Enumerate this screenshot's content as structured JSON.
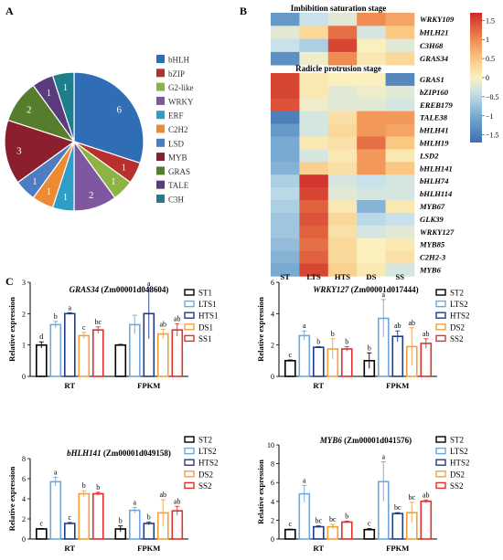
{
  "panels": {
    "a": "A",
    "b": "B",
    "c": "C"
  },
  "panel_a": {
    "type": "pie",
    "legend": [
      "bHLH",
      "bZIP",
      "G2-like",
      "WRKY",
      "ERF",
      "C2H2",
      "LSD",
      "MYB",
      "GRAS",
      "TALE",
      "C3H"
    ],
    "counts": [
      6,
      1,
      1,
      2,
      1,
      1,
      1,
      3,
      2,
      1,
      1
    ],
    "colors": [
      "#2F6EB5",
      "#B8302E",
      "#8CB344",
      "#7E57A0",
      "#2E9EC9",
      "#ED8B35",
      "#4E7CC0",
      "#8B1F2E",
      "#567D2E",
      "#5A3C7E",
      "#1E7E8C"
    ]
  },
  "panel_b": {
    "title1": "Imbibition saturation stage",
    "title2": "Radicle protrusion stage",
    "columns": [
      "ST",
      "LTS",
      "HTS",
      "DS",
      "SS"
    ],
    "genes1": [
      "WRKY109",
      "bHLH21",
      "C3H68",
      "GRAS34"
    ],
    "genes2": [
      "GRAS1",
      "bZIP160",
      "EREB179",
      "TALE38",
      "bHLH41",
      "bHLH19",
      "LSD2",
      "bHLH141",
      "bHLH74",
      "bHLH114",
      "MYB67",
      "GLK39",
      "WRKY127",
      "MYB85",
      "C2H2-3",
      "MYB6"
    ],
    "colorbar_ticks": [
      "1.5",
      "1",
      "0.5",
      "0",
      "−0.5",
      "−1",
      "−1.5"
    ],
    "values1": [
      [
        -1.2,
        -0.4,
        -0.2,
        1.0,
        0.8
      ],
      [
        -0.2,
        0.3,
        1.2,
        -0.3,
        0.5
      ],
      [
        -0.4,
        -0.6,
        1.5,
        0.0,
        -0.2
      ],
      [
        -1.3,
        -0.1,
        1.0,
        0.1,
        0.3
      ]
    ],
    "values2": [
      [
        1.5,
        0.1,
        0.0,
        0.0,
        -1.4
      ],
      [
        1.5,
        0.1,
        -0.2,
        -0.1,
        -0.2
      ],
      [
        1.4,
        -0.1,
        -0.2,
        -0.2,
        -0.3
      ],
      [
        -1.5,
        -0.3,
        0.2,
        0.9,
        0.9
      ],
      [
        -1.2,
        -0.3,
        0.3,
        0.9,
        0.8
      ],
      [
        -1.0,
        0.1,
        0.2,
        1.2,
        0.5
      ],
      [
        -1.0,
        -0.3,
        0.1,
        0.9,
        0.1
      ],
      [
        -0.9,
        0.4,
        0.2,
        0.9,
        0.5
      ],
      [
        -0.6,
        1.6,
        -0.3,
        -0.4,
        -0.3
      ],
      [
        -0.5,
        1.5,
        -0.2,
        -0.3,
        -0.3
      ],
      [
        -0.6,
        1.3,
        0.1,
        -0.9,
        0.1
      ],
      [
        -0.7,
        1.4,
        0.3,
        -0.5,
        -0.4
      ],
      [
        -0.7,
        1.3,
        0.2,
        -0.3,
        -0.2
      ],
      [
        -0.8,
        1.2,
        0.3,
        0.0,
        0.1
      ],
      [
        -0.9,
        1.3,
        0.3,
        0.0,
        0.2
      ],
      [
        -1.0,
        1.5,
        0.4,
        0.1,
        -0.3
      ]
    ]
  },
  "chart_data": [
    {
      "type": "bar",
      "title_gene": "GRAS34",
      "title_id": "(Zm00001d048604)",
      "ylabel": "Relative expression",
      "categories": [
        "RT",
        "FPKM"
      ],
      "ylim": [
        0,
        3
      ],
      "yticks": [
        "0",
        "1",
        "2",
        "3"
      ],
      "series": [
        {
          "name": "ST1",
          "color": "#000000",
          "values": [
            1.0,
            1.0
          ],
          "errors": [
            0.1,
            0.02
          ],
          "letters": [
            "d",
            ""
          ]
        },
        {
          "name": "LTS1",
          "color": "#6FA8DC",
          "values": [
            1.65,
            1.65
          ],
          "errors": [
            0.1,
            0.3
          ],
          "letters": [
            "b",
            ""
          ]
        },
        {
          "name": "HTS1",
          "color": "#1F3C88",
          "values": [
            2.0,
            2.0
          ],
          "errors": [
            0.03,
            0.8
          ],
          "letters": [
            "a",
            "a"
          ]
        },
        {
          "name": "DS1",
          "color": "#F4A13A",
          "values": [
            1.3,
            1.35
          ],
          "errors": [
            0.1,
            0.15
          ],
          "letters": [
            "c",
            "ab"
          ]
        },
        {
          "name": "SS1",
          "color": "#E03030",
          "values": [
            1.48,
            1.48
          ],
          "errors": [
            0.1,
            0.2
          ],
          "letters": [
            "bc",
            "ab"
          ]
        }
      ]
    },
    {
      "type": "bar",
      "title_gene": "WRKY127",
      "title_id": "(Zm00001d017444)",
      "ylabel": "Relative expression",
      "categories": [
        "RT",
        "FPKM"
      ],
      "ylim": [
        0,
        6
      ],
      "yticks": [
        "0",
        "2",
        "4",
        "6"
      ],
      "series": [
        {
          "name": "ST2",
          "color": "#000000",
          "values": [
            1.0,
            1.0
          ],
          "errors": [
            0.05,
            0.5
          ],
          "letters": [
            "c",
            "b"
          ]
        },
        {
          "name": "LTS2",
          "color": "#6FA8DC",
          "values": [
            2.6,
            3.7
          ],
          "errors": [
            0.3,
            1.2
          ],
          "letters": [
            "a",
            "a"
          ]
        },
        {
          "name": "HTS2",
          "color": "#1F3C88",
          "values": [
            1.85,
            2.55
          ],
          "errors": [
            0.05,
            0.35
          ],
          "letters": [
            "b",
            "ab"
          ]
        },
        {
          "name": "DS2",
          "color": "#F4A13A",
          "values": [
            1.75,
            1.9
          ],
          "errors": [
            0.65,
            1.2
          ],
          "letters": [
            "b",
            "ab"
          ]
        },
        {
          "name": "SS2",
          "color": "#E03030",
          "values": [
            1.75,
            2.1
          ],
          "errors": [
            0.15,
            0.3
          ],
          "letters": [
            "b",
            "ab"
          ]
        }
      ]
    },
    {
      "type": "bar",
      "title_gene": "bHLH141",
      "title_id": "(Zm00001d049158)",
      "ylabel": "Relative expression",
      "categories": [
        "RT",
        "FPKM"
      ],
      "ylim": [
        0,
        8
      ],
      "yticks": [
        "0",
        "2",
        "4",
        "6",
        "8"
      ],
      "series": [
        {
          "name": "ST2",
          "color": "#000000",
          "values": [
            1.0,
            1.0
          ],
          "errors": [
            0.05,
            0.3
          ],
          "letters": [
            "c",
            "b"
          ]
        },
        {
          "name": "LTS2",
          "color": "#6FA8DC",
          "values": [
            5.7,
            2.85
          ],
          "errors": [
            0.45,
            0.3
          ],
          "letters": [
            "a",
            "a"
          ]
        },
        {
          "name": "HTS2",
          "color": "#1F3C88",
          "values": [
            1.55,
            1.55
          ],
          "errors": [
            0.1,
            0.15
          ],
          "letters": [
            "c",
            "b"
          ]
        },
        {
          "name": "DS2",
          "color": "#F4A13A",
          "values": [
            4.5,
            2.6
          ],
          "errors": [
            0.3,
            1.3
          ],
          "letters": [
            "b",
            "ab"
          ]
        },
        {
          "name": "SS2",
          "color": "#E03030",
          "values": [
            4.5,
            2.8
          ],
          "errors": [
            0.15,
            0.45
          ],
          "letters": [
            "b",
            "ab"
          ]
        }
      ]
    },
    {
      "type": "bar",
      "title_gene": "MYB6",
      "title_id": "(Zm00001d041576)",
      "ylabel": "Relative expression",
      "categories": [
        "RT",
        "FPKM"
      ],
      "ylim": [
        0,
        10
      ],
      "yticks": [
        "0",
        "2",
        "4",
        "6",
        "8",
        "10"
      ],
      "series": [
        {
          "name": "ST2",
          "color": "#000000",
          "values": [
            1.0,
            1.0
          ],
          "errors": [
            0.05,
            0.1
          ],
          "letters": [
            "c",
            "c"
          ]
        },
        {
          "name": "LTS2",
          "color": "#6FA8DC",
          "values": [
            4.8,
            6.1
          ],
          "errors": [
            0.9,
            2.1
          ],
          "letters": [
            "a",
            "a"
          ]
        },
        {
          "name": "HTS2",
          "color": "#1F3C88",
          "values": [
            1.3,
            2.7
          ],
          "errors": [
            0.1,
            0.1
          ],
          "letters": [
            "bc",
            "bc"
          ]
        },
        {
          "name": "DS2",
          "color": "#F4A13A",
          "values": [
            1.3,
            2.8
          ],
          "errors": [
            0.25,
            1.1
          ],
          "letters": [
            "bc",
            "bc"
          ]
        },
        {
          "name": "SS2",
          "color": "#E03030",
          "values": [
            1.8,
            4.0
          ],
          "errors": [
            0.1,
            0.15
          ],
          "letters": [
            "b",
            "ab"
          ]
        }
      ]
    }
  ]
}
